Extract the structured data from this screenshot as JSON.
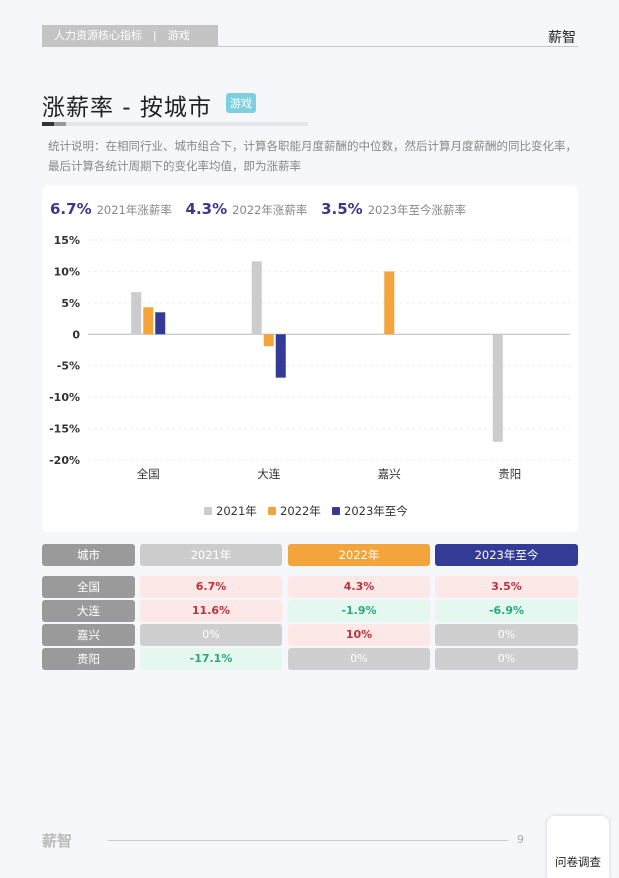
{
  "header": {
    "breadcrumb": "人力资源核心指标　|　游戏",
    "brand": "薪智"
  },
  "page": {
    "title": "涨薪率 - 按城市",
    "tag": "游戏",
    "description": "统计说明：在相同行业、城市组合下，计算各职能月度薪酬的中位数，然后计算月度薪酬的同比变化率，最后计算各统计周期下的变化率均值，即为涨薪率"
  },
  "kpis": [
    {
      "value": "6.7%",
      "label": "2021年涨薪率"
    },
    {
      "value": "4.3%",
      "label": "2022年涨薪率"
    },
    {
      "value": "3.5%",
      "label": "2023年至今涨薪率"
    }
  ],
  "chart_data": {
    "type": "bar",
    "categories": [
      "全国",
      "大连",
      "嘉兴",
      "贵阳"
    ],
    "series": [
      {
        "name": "2021年",
        "color": "#cccccc",
        "values": [
          6.7,
          11.6,
          0,
          -17.1
        ]
      },
      {
        "name": "2022年",
        "color": "#f3a53c",
        "values": [
          4.3,
          -1.9,
          10,
          0
        ]
      },
      {
        "name": "2023年至今",
        "color": "#333b96",
        "values": [
          3.5,
          -6.9,
          0,
          0
        ]
      }
    ],
    "ylim": [
      -20,
      15
    ],
    "yticks": [
      15,
      10,
      5,
      0,
      -5,
      -10,
      -15,
      -20
    ],
    "ytick_labels": [
      "15%",
      "10%",
      "5%",
      "0",
      "-5%",
      "-10%",
      "-15%",
      "-20%"
    ],
    "legend": "bottom",
    "grid": true
  },
  "table": {
    "headers": [
      "城市",
      "2021年",
      "2022年",
      "2023年至今"
    ],
    "rows": [
      {
        "city": "全国",
        "values": [
          "6.7%",
          "4.3%",
          "3.5%"
        ]
      },
      {
        "city": "大连",
        "values": [
          "11.6%",
          "-1.9%",
          "-6.9%"
        ]
      },
      {
        "city": "嘉兴",
        "values": [
          "0%",
          "10%",
          "0%"
        ]
      },
      {
        "city": "贵阳",
        "values": [
          "-17.1%",
          "0%",
          "0%"
        ]
      }
    ]
  },
  "footer": {
    "logo": "薪智",
    "page": "9",
    "survey": "问卷调查"
  }
}
